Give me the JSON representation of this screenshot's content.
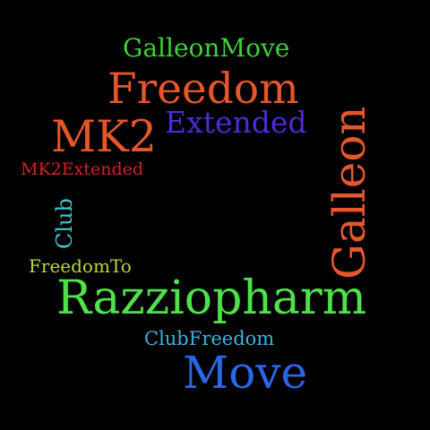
{
  "background": "#000000",
  "words": [
    {
      "text": "GalleonMove",
      "color": "#3fce3a"
    },
    {
      "text": "Freedom",
      "color": "#e5562a"
    },
    {
      "text": "Extended",
      "color": "#5028d8"
    },
    {
      "text": "MK2",
      "color": "#e5562a"
    },
    {
      "text": "MK2Extended",
      "color": "#d81e24"
    },
    {
      "text": "Club",
      "color": "#3cc8d6"
    },
    {
      "text": "Galleon",
      "color": "#e5562a"
    },
    {
      "text": "FreedomTo",
      "color": "#b8d83a"
    },
    {
      "text": "Razziopharm",
      "color": "#4ee24a"
    },
    {
      "text": "ClubFreedom",
      "color": "#38b4e0"
    },
    {
      "text": "Move",
      "color": "#2a66e8"
    }
  ]
}
